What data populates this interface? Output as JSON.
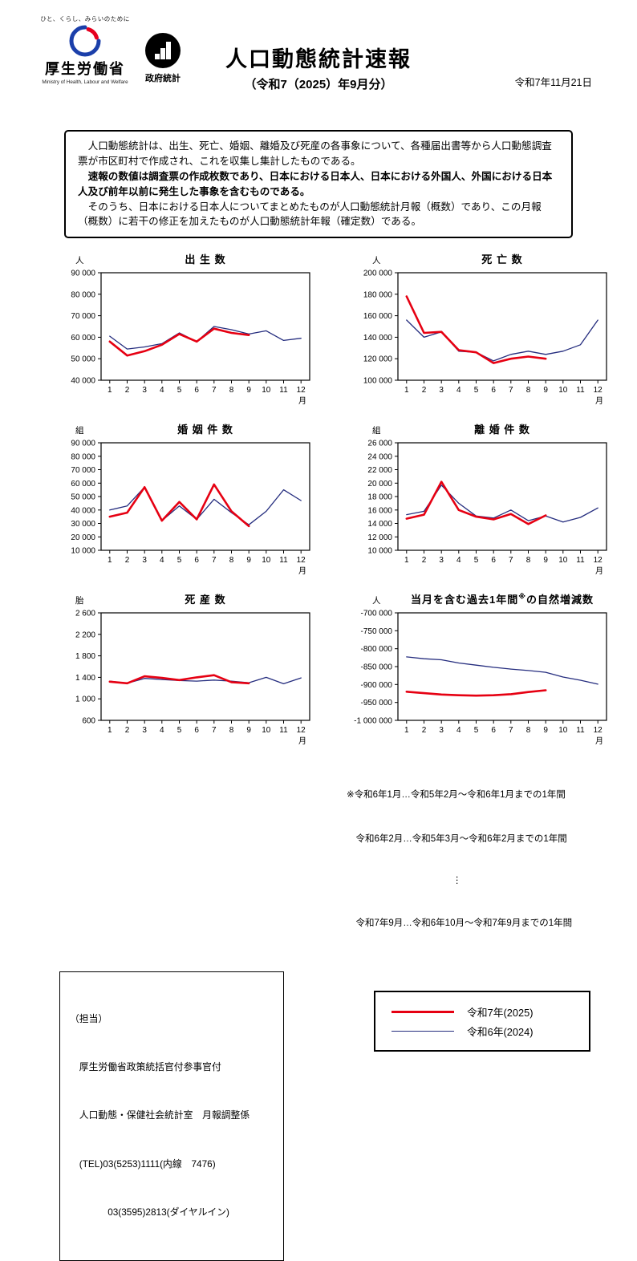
{
  "header": {
    "tagline": "ひと、くらし、みらいのために",
    "ministry": "厚生労働省",
    "ministry_en": "Ministry of Health, Labour and Welfare",
    "gov_stats": "政府統計",
    "title": "人口動態統計速報",
    "subtitle": "（令和7（2025）年9月分）",
    "date": "令和7年11月21日"
  },
  "intro": {
    "p1": "　人口動態統計は、出生、死亡、婚姻、離婚及び死産の各事象について、各種届出書等から人口動態調査票が市区町村で作成され、これを収集し集計したものである。",
    "p2": "　速報の数値は調査票の作成枚数であり、日本における日本人、日本における外国人、外国における日本人及び前年以前に発生した事象を含むものである。",
    "p3": "　そのうち、日本における日本人についてまとめたものが人口動態統計月報（概数）であり、この月報（概数）に若干の修正を加えたものが人口動態統計年報（確定数）である。"
  },
  "months": [
    1,
    2,
    3,
    4,
    5,
    6,
    7,
    8,
    9,
    10,
    11,
    12
  ],
  "x_axis_label": "月",
  "chart_data": [
    {
      "type": "line",
      "unit": "人",
      "title": "出 生 数",
      "ymin": 40000,
      "ymax": 90000,
      "ystep": 10000,
      "series": [
        {
          "name": "令和6年(2024)",
          "color": "#242c7e",
          "thick": false,
          "values": [
            60500,
            54500,
            55500,
            57000,
            62000,
            58000,
            65000,
            63500,
            61500,
            63000,
            58500,
            59500
          ]
        },
        {
          "name": "令和7年(2025)",
          "color": "#e60012",
          "thick": true,
          "values": [
            58000,
            51500,
            53500,
            56500,
            61500,
            58000,
            64000,
            62000,
            61000
          ]
        }
      ]
    },
    {
      "type": "line",
      "unit": "人",
      "title": "死 亡 数",
      "ymin": 100000,
      "ymax": 200000,
      "ystep": 20000,
      "series": [
        {
          "name": "令和6年(2024)",
          "color": "#242c7e",
          "thick": false,
          "values": [
            156000,
            140000,
            145000,
            127000,
            126000,
            118000,
            124000,
            127000,
            124000,
            127000,
            133000,
            156000
          ]
        },
        {
          "name": "令和7年(2025)",
          "color": "#e60012",
          "thick": true,
          "values": [
            178000,
            144000,
            145000,
            128000,
            126000,
            116000,
            120000,
            122000,
            120000
          ]
        }
      ]
    },
    {
      "type": "line",
      "unit": "組",
      "title": "婚 姻 件 数",
      "ymin": 10000,
      "ymax": 90000,
      "ystep": 10000,
      "series": [
        {
          "name": "令和6年(2024)",
          "color": "#242c7e",
          "thick": false,
          "values": [
            40000,
            43000,
            57000,
            32000,
            43000,
            33000,
            48000,
            38000,
            29000,
            39000,
            55000,
            47000
          ]
        },
        {
          "name": "令和7年(2025)",
          "color": "#e60012",
          "thick": true,
          "values": [
            35000,
            38000,
            57000,
            32000,
            46000,
            33000,
            59000,
            39000,
            28000
          ]
        }
      ]
    },
    {
      "type": "line",
      "unit": "組",
      "title": "離 婚 件 数",
      "ymin": 10000,
      "ymax": 26000,
      "ystep": 2000,
      "series": [
        {
          "name": "令和6年(2024)",
          "color": "#242c7e",
          "thick": false,
          "values": [
            15300,
            15800,
            19700,
            17000,
            15100,
            14800,
            16000,
            14400,
            15100,
            14200,
            14900,
            16300
          ]
        },
        {
          "name": "令和7年(2025)",
          "color": "#e60012",
          "thick": true,
          "values": [
            14700,
            15300,
            20200,
            16000,
            15000,
            14600,
            15400,
            13900,
            15200
          ]
        }
      ]
    },
    {
      "type": "line",
      "unit": "胎",
      "title": "死 産 数",
      "ymin": 600,
      "ymax": 2600,
      "ystep": 400,
      "series": [
        {
          "name": "令和6年(2024)",
          "color": "#242c7e",
          "thick": false,
          "values": [
            1330,
            1290,
            1380,
            1360,
            1340,
            1330,
            1350,
            1330,
            1300,
            1400,
            1280,
            1390
          ]
        },
        {
          "name": "令和7年(2025)",
          "color": "#e60012",
          "thick": true,
          "values": [
            1320,
            1290,
            1420,
            1390,
            1350,
            1400,
            1440,
            1310,
            1290
          ]
        }
      ]
    },
    {
      "type": "line",
      "unit": "人",
      "title": "当月を含む過去1年間",
      "title_sup": "※",
      "title_post": "の自然増減数",
      "ymin": -1000000,
      "ymax": -700000,
      "ystep": 50000,
      "series": [
        {
          "name": "令和6年(2024)",
          "color": "#242c7e",
          "thick": false,
          "values": [
            -823000,
            -828000,
            -831000,
            -840000,
            -846000,
            -852000,
            -857000,
            -861000,
            -866000,
            -879000,
            -888000,
            -899000
          ]
        },
        {
          "name": "令和7年(2025)",
          "color": "#e60012",
          "thick": true,
          "values": [
            -920000,
            -924000,
            -928000,
            -930000,
            -931000,
            -930000,
            -927000,
            -921000,
            -916000
          ]
        }
      ]
    }
  ],
  "footnotes": [
    "※令和6年1月…令和5年2月～令和6年1月までの1年間",
    "　令和6年2月…令和5年3月～令和6年2月までの1年間",
    "⋮",
    "　令和7年9月…令和6年10月～令和7年9月までの1年間"
  ],
  "legend": [
    {
      "label": "令和7年(2025)",
      "color": "#e60012",
      "thick": true
    },
    {
      "label": "令和6年(2024)",
      "color": "#242c7e",
      "thick": false
    }
  ],
  "contact": [
    "（担当）",
    "　厚生労働省政策統括官付参事官付",
    "　人口動態・保健社会統計室　月報調整係",
    "　(TEL)03(5253)1111(内線　7476)",
    "　　　　03(3595)2813(ダイヤルイン)"
  ]
}
